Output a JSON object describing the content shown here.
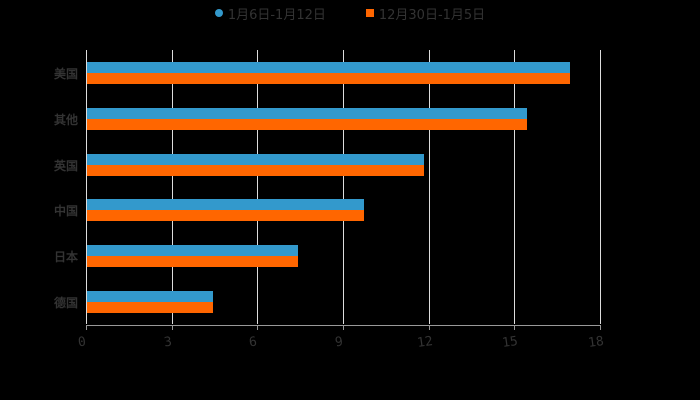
{
  "chart_data": {
    "type": "bar",
    "orientation": "horizontal",
    "title": "",
    "xlabel": "",
    "ylabel": "",
    "categories": [
      "美国",
      "其他",
      "英国",
      "中国",
      "日本",
      "德国"
    ],
    "series": [
      {
        "name": "1月6日-1月12日",
        "color": "#3399cc",
        "values": [
          16.9,
          15.4,
          11.8,
          9.7,
          7.4,
          4.4
        ]
      },
      {
        "name": "12月30日-1月5日",
        "color": "#ff6600",
        "values": [
          16.9,
          15.4,
          11.8,
          9.7,
          7.4,
          4.4
        ]
      }
    ],
    "xlim": [
      0,
      18
    ],
    "xticks": [
      "0",
      "3",
      "6",
      "9",
      "12",
      "15",
      "18"
    ],
    "grid": true,
    "legend_position": "top"
  },
  "legend": {
    "items": [
      {
        "label": "1月6日-1月12日",
        "color": "#3399cc",
        "marker": "circle"
      },
      {
        "label": "12月30日-1月5日",
        "color": "#ff6600",
        "marker": "square"
      }
    ]
  }
}
